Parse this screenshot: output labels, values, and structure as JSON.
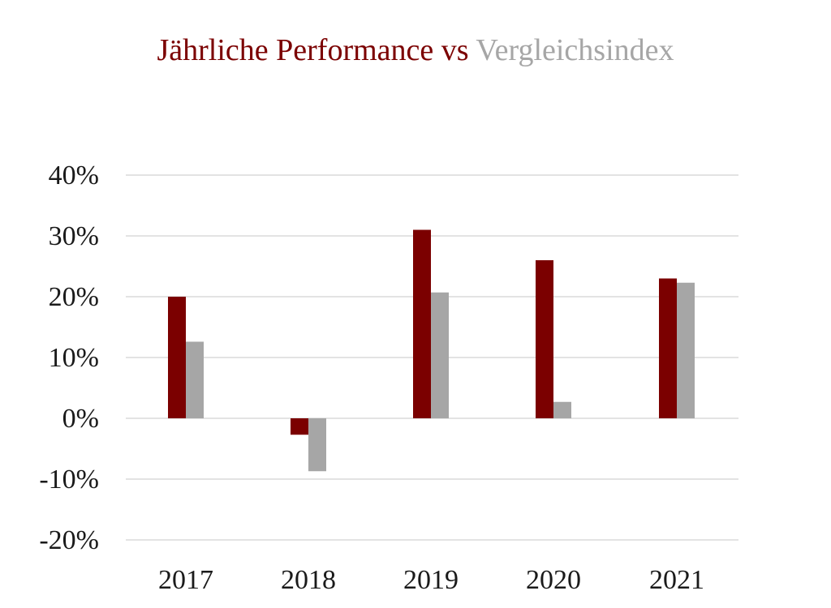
{
  "colors": {
    "portfolio": "#7b0000",
    "benchmark": "#a6a6a6",
    "grid": "#e3e3e3",
    "text": "#1a1a1a"
  },
  "chart_data": {
    "type": "bar",
    "title": {
      "part1": "Jährliche Performance",
      "part2": " vs ",
      "part3": "Vergleichsindex"
    },
    "xlabel": "",
    "ylabel": "",
    "categories": [
      "2017",
      "2018",
      "2019",
      "2020",
      "2021"
    ],
    "series": [
      {
        "color": "#7b0000",
        "values": [
          20.0,
          -2.7,
          31.0,
          26.0,
          23.0
        ]
      },
      {
        "color": "#a6a6a6",
        "values": [
          12.6,
          -8.7,
          20.7,
          2.7,
          22.3
        ]
      }
    ],
    "ylim": [
      -20,
      40
    ],
    "yticks": [
      40,
      30,
      20,
      10,
      0,
      -10,
      -20
    ],
    "ytick_labels": [
      "40%",
      "30%",
      "20%",
      "10%",
      "0%",
      "-10%",
      "-20%"
    ],
    "grid": true,
    "legend": "none"
  }
}
